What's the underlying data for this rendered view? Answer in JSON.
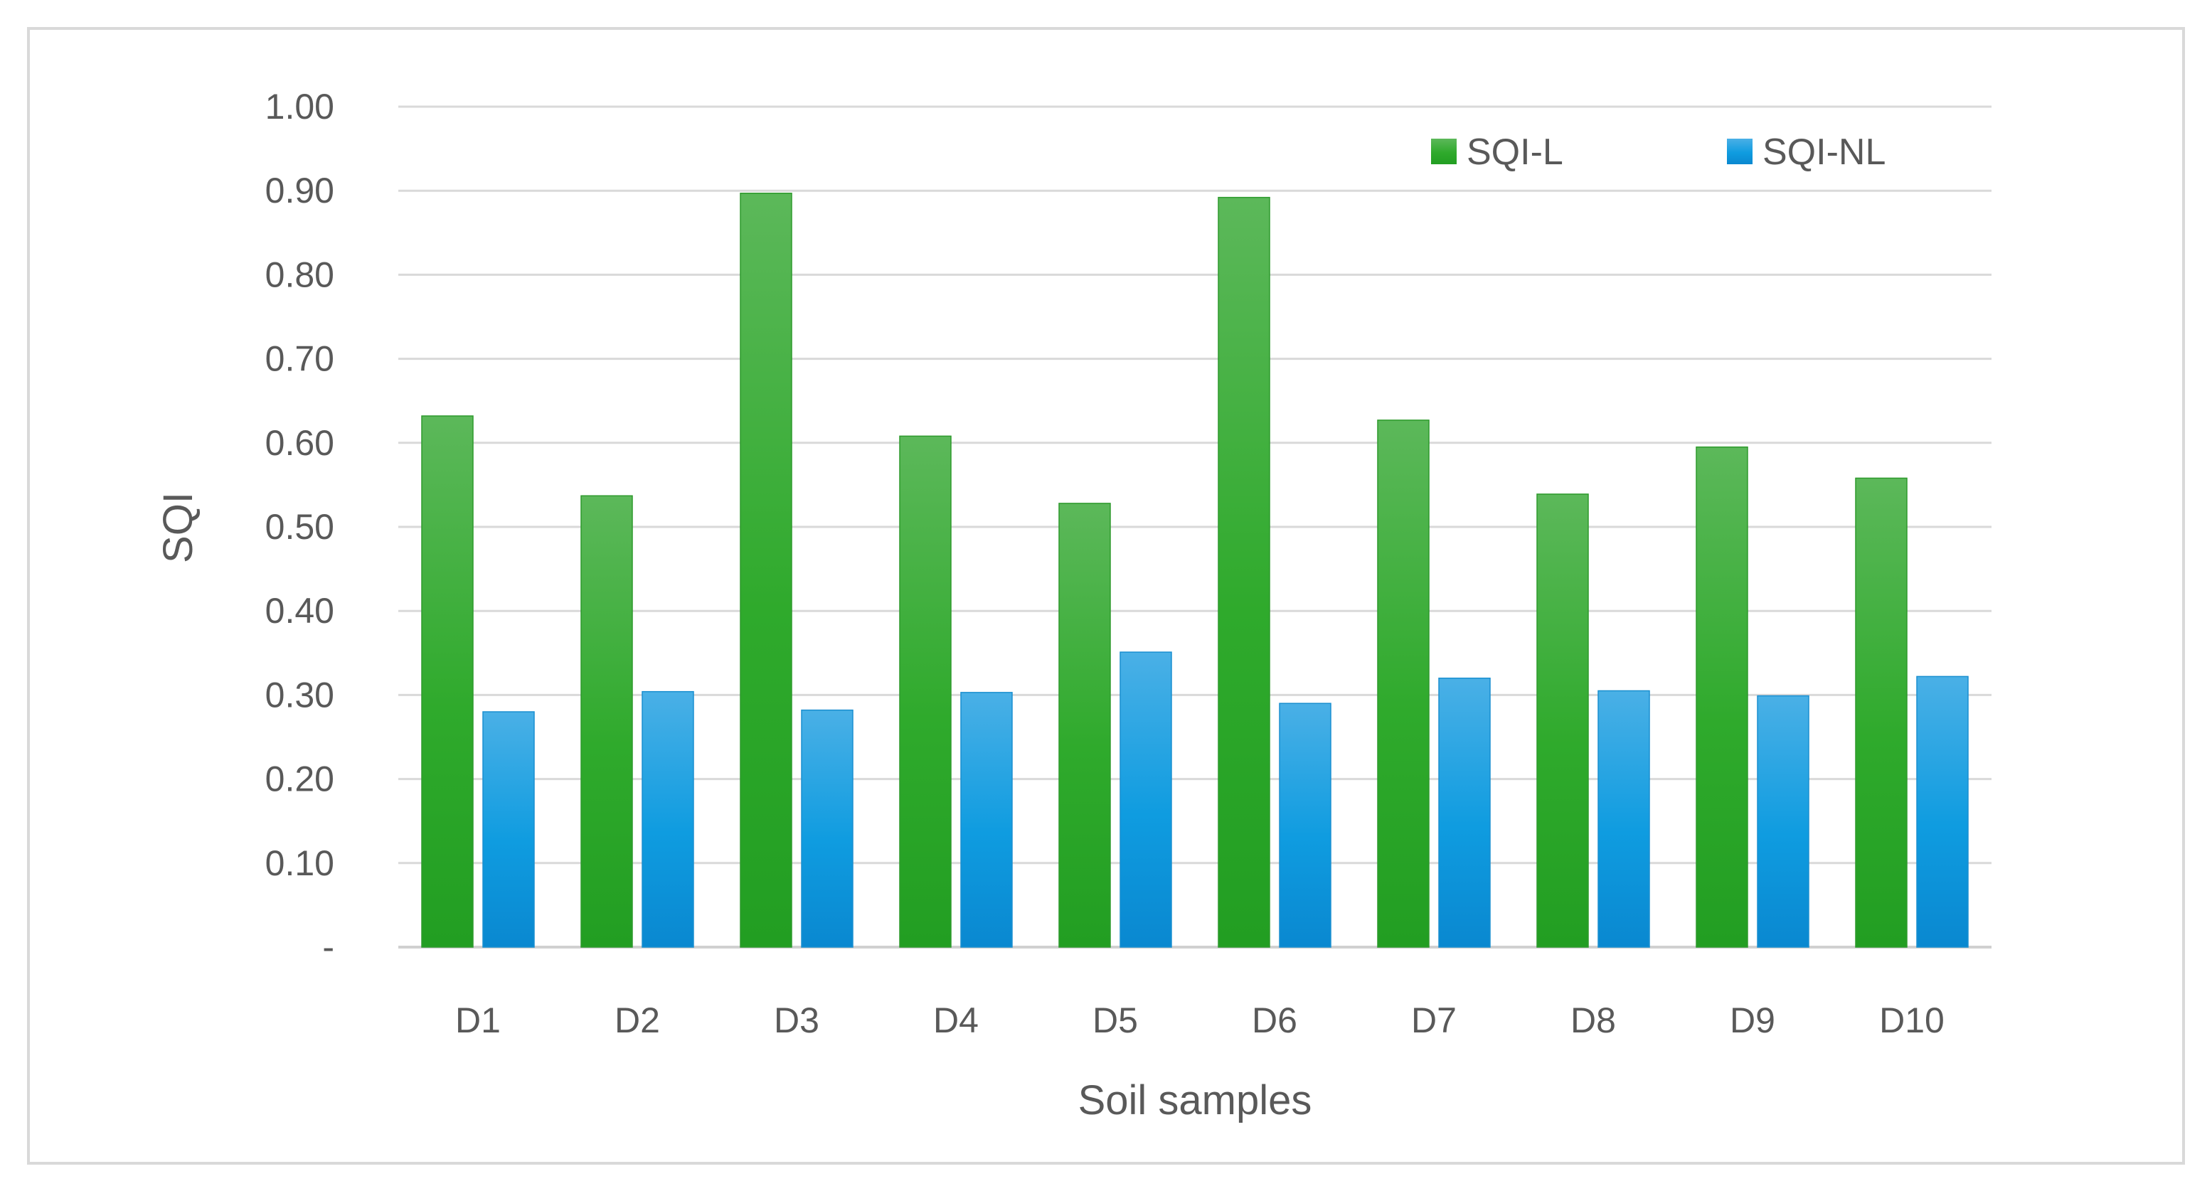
{
  "chart_data": {
    "type": "bar",
    "categories": [
      "D1",
      "D2",
      "D3",
      "D4",
      "D5",
      "D6",
      "D7",
      "D8",
      "D9",
      "D10"
    ],
    "series": [
      {
        "name": "SQI-L",
        "values": [
          0.632,
          0.537,
          0.897,
          0.608,
          0.528,
          0.892,
          0.627,
          0.539,
          0.595,
          0.558
        ],
        "color": "#33a532"
      },
      {
        "name": "SQI-NL",
        "values": [
          0.28,
          0.304,
          0.282,
          0.303,
          0.351,
          0.29,
          0.32,
          0.305,
          0.299,
          0.322
        ],
        "color": "#1e9fdc"
      }
    ],
    "xlabel": "Soil samples",
    "ylabel": "SQI",
    "ylim": [
      0,
      1.0
    ],
    "y_ticks": [
      "-",
      "0.10",
      "0.20",
      "0.30",
      "0.40",
      "0.50",
      "0.60",
      "0.70",
      "0.80",
      "0.90",
      "1.00"
    ],
    "grid": true,
    "legend_position": "top-right"
  }
}
